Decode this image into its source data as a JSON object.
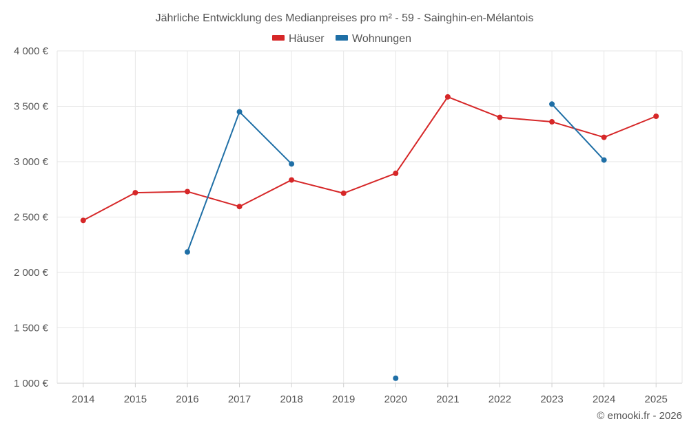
{
  "chart_data": {
    "type": "line",
    "title": "Jährliche Entwicklung des Medianpreises pro m² - 59 - Sainghin-en-Mélantois",
    "categories": [
      "2014",
      "2015",
      "2016",
      "2017",
      "2018",
      "2019",
      "2020",
      "2021",
      "2022",
      "2023",
      "2024",
      "2025"
    ],
    "series": [
      {
        "name": "Häuser",
        "color": "#d62728",
        "values": [
          2470,
          2720,
          2730,
          2595,
          2835,
          2715,
          2895,
          3585,
          3400,
          3360,
          3220,
          3410
        ]
      },
      {
        "name": "Wohnungen",
        "color": "#1f6fa6",
        "values": [
          null,
          null,
          2185,
          3450,
          2980,
          null,
          1045,
          null,
          null,
          3520,
          3015,
          null
        ]
      }
    ],
    "y_tick_labels": [
      "1 000 €",
      "1 500 €",
      "2 000 €",
      "2 500 €",
      "3 000 €",
      "3 500 €",
      "4 000 €"
    ],
    "y_ticks": [
      1000,
      1500,
      2000,
      2500,
      3000,
      3500,
      4000
    ],
    "ylim": [
      1000,
      4000
    ],
    "xlabel": "",
    "ylabel": "",
    "grid": true,
    "legend_position": "top-center",
    "credit": "© emooki.fr - 2026"
  }
}
